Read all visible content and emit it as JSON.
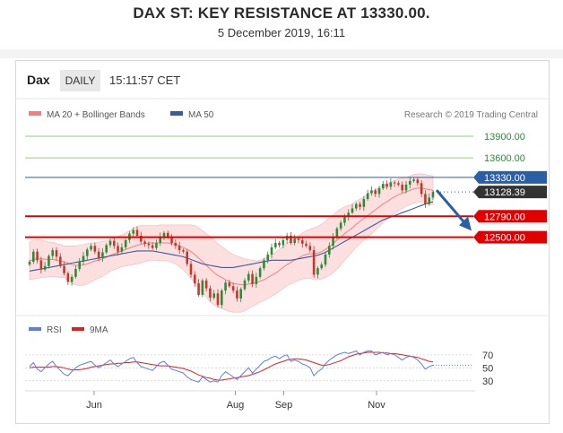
{
  "header": {
    "title": "DAX ST: KEY RESISTANCE AT 13330.00.",
    "subtitle": "5 December 2019, 16:11"
  },
  "toolbar": {
    "symbol": "Dax",
    "timeframe": "DAILY",
    "time": "15:11:57 CET"
  },
  "legend": {
    "ma20": "MA 20 + Bollinger Bands",
    "ma50": "MA 50",
    "credit": "Research © 2019 Trading Central"
  },
  "rsi_legend": {
    "rsi": "RSI",
    "ma9": "9MA"
  },
  "colors": {
    "resistance": "#2a5fa8",
    "support": "#e00000",
    "target_green": "#8fd07a",
    "candle_up": "#2e8b3a",
    "candle_down": "#c0392b",
    "bollinger_fill": "#fbd3d3",
    "ma20": "#f08080",
    "ma50": "#3a5ba0",
    "rsi_line": "#5b7fe0",
    "rsi_ma": "#e02020",
    "arrow": "#2a5fa8",
    "current_price_tag": "#333333"
  },
  "chart_data": {
    "type": "candlestick",
    "x_labels": [
      "Jun",
      "Aug",
      "Sep",
      "Nov"
    ],
    "y_range": [
      11500,
      14050
    ],
    "levels": [
      {
        "label": "13900.00",
        "value": 13900,
        "kind": "target"
      },
      {
        "label": "13600.00",
        "value": 13600,
        "kind": "target"
      },
      {
        "label": "13330.00",
        "value": 13330,
        "kind": "resistance"
      },
      {
        "label": "13128.39",
        "value": 13128.39,
        "kind": "current"
      },
      {
        "label": "12790.00",
        "value": 12790,
        "kind": "support"
      },
      {
        "label": "12500.00",
        "value": 12500,
        "kind": "support"
      }
    ],
    "close": [
      12160,
      12300,
      12180,
      12050,
      12100,
      12240,
      12320,
      12230,
      12100,
      12000,
      11880,
      11950,
      12060,
      12160,
      12240,
      12330,
      12380,
      12300,
      12210,
      12290,
      12390,
      12450,
      12380,
      12300,
      12360,
      12460,
      12550,
      12600,
      12520,
      12440,
      12410,
      12390,
      12350,
      12420,
      12510,
      12560,
      12500,
      12420,
      12380,
      12320,
      12300,
      12130,
      11980,
      11860,
      11700,
      11900,
      11790,
      11660,
      11720,
      11560,
      11760,
      11870,
      11820,
      11760,
      11650,
      11780,
      11900,
      11990,
      11850,
      11950,
      12070,
      12180,
      12260,
      12360,
      12420,
      12390,
      12460,
      12520,
      12420,
      12480,
      12460,
      12410,
      12380,
      12320,
      11980,
      12070,
      12120,
      12260,
      12380,
      12500,
      12620,
      12700,
      12780,
      12840,
      12900,
      12960,
      12920,
      13030,
      13110,
      13150,
      13100,
      13180,
      13240,
      13200,
      13260,
      13250,
      13230,
      13150,
      13230,
      13280,
      13300,
      13250,
      13100,
      12960,
      13050,
      13128
    ],
    "ma20_values": [
      12170,
      12190,
      12200,
      12200,
      12195,
      12190,
      12190,
      12180,
      12170,
      12160,
      12140,
      12120,
      12110,
      12110,
      12115,
      12130,
      12150,
      12170,
      12180,
      12200,
      12220,
      12250,
      12270,
      12290,
      12310,
      12330,
      12350,
      12370,
      12390,
      12400,
      12410,
      12420,
      12420,
      12420,
      12420,
      12420,
      12420,
      12410,
      12400,
      12380,
      12360,
      12330,
      12300,
      12260,
      12210,
      12160,
      12110,
      12060,
      12010,
      11970,
      11940,
      11910,
      11880,
      11860,
      11850,
      11840,
      11840,
      11850,
      11860,
      11870,
      11890,
      11910,
      11940,
      11970,
      12000,
      12040,
      12080,
      12120,
      12150,
      12180,
      12210,
      12240,
      12260,
      12270,
      12270,
      12280,
      12300,
      12330,
      12370,
      12410,
      12460,
      12500,
      12550,
      12590,
      12630,
      12680,
      12720,
      12760,
      12800,
      12840,
      12880,
      12920,
      12960,
      12990,
      13030,
      13060,
      13090,
      13110,
      13130,
      13150,
      13170,
      13180,
      13180,
      13170,
      13160,
      13150
    ],
    "bb_width": [
      260,
      270,
      270,
      260,
      250,
      240,
      240,
      230,
      230,
      220,
      240,
      260,
      270,
      280,
      280,
      280,
      270,
      260,
      250,
      240,
      230,
      220,
      220,
      220,
      220,
      230,
      240,
      250,
      260,
      260,
      250,
      240,
      240,
      240,
      250,
      250,
      250,
      260,
      270,
      290,
      310,
      340,
      370,
      400,
      420,
      430,
      440,
      450,
      450,
      440,
      430,
      420,
      410,
      400,
      390,
      380,
      360,
      340,
      320,
      300,
      290,
      290,
      290,
      290,
      290,
      290,
      290,
      290,
      300,
      300,
      310,
      320,
      330,
      340,
      360,
      370,
      380,
      390,
      400,
      400,
      400,
      390,
      370,
      350,
      330,
      320,
      310,
      300,
      300,
      290,
      280,
      270,
      260,
      250,
      240,
      230,
      220,
      210,
      200,
      200,
      200,
      200,
      200,
      200,
      200,
      200
    ],
    "ma50_values": [
      12030,
      12040,
      12050,
      12060,
      12070,
      12080,
      12090,
      12100,
      12110,
      12120,
      12130,
      12140,
      12150,
      12160,
      12170,
      12180,
      12190,
      12200,
      12210,
      12220,
      12230,
      12240,
      12250,
      12260,
      12270,
      12280,
      12290,
      12300,
      12310,
      12310,
      12310,
      12310,
      12310,
      12300,
      12290,
      12280,
      12270,
      12260,
      12250,
      12240,
      12230,
      12210,
      12190,
      12170,
      12150,
      12130,
      12120,
      12110,
      12100,
      12090,
      12080,
      12080,
      12080,
      12080,
      12090,
      12100,
      12110,
      12120,
      12130,
      12140,
      12150,
      12160,
      12170,
      12180,
      12180,
      12180,
      12180,
      12180,
      12180,
      12190,
      12200,
      12210,
      12220,
      12230,
      12240,
      12250,
      12270,
      12290,
      12320,
      12350,
      12380,
      12410,
      12440,
      12470,
      12500,
      12530,
      12560,
      12590,
      12620,
      12650,
      12680,
      12710,
      12740,
      12760,
      12780,
      12800,
      12820,
      12840,
      12860,
      12880,
      12900,
      12920,
      12940,
      12960,
      12980,
      12990
    ],
    "rsi": {
      "y_ticks": [
        70,
        50,
        30
      ],
      "rsi_values": [
        52,
        58,
        48,
        44,
        50,
        56,
        60,
        52,
        46,
        40,
        38,
        44,
        50,
        54,
        56,
        58,
        60,
        54,
        50,
        54,
        58,
        62,
        56,
        52,
        56,
        60,
        64,
        66,
        58,
        52,
        50,
        48,
        46,
        52,
        58,
        60,
        54,
        48,
        46,
        44,
        42,
        36,
        32,
        30,
        28,
        36,
        32,
        28,
        30,
        28,
        38,
        44,
        40,
        36,
        32,
        38,
        44,
        50,
        42,
        48,
        54,
        60,
        62,
        66,
        68,
        64,
        68,
        70,
        60,
        62,
        60,
        56,
        54,
        50,
        38,
        44,
        48,
        56,
        62,
        66,
        70,
        72,
        74,
        72,
        74,
        76,
        70,
        74,
        76,
        76,
        70,
        72,
        74,
        70,
        72,
        70,
        66,
        62,
        66,
        68,
        66,
        62,
        56,
        48,
        52,
        54
      ],
      "ma9_values": [
        50,
        51,
        51,
        51,
        51,
        51,
        52,
        52,
        51,
        50,
        48,
        47,
        47,
        47,
        48,
        49,
        51,
        52,
        53,
        54,
        55,
        56,
        56,
        57,
        57,
        58,
        58,
        59,
        59,
        58,
        57,
        56,
        55,
        54,
        53,
        53,
        53,
        52,
        51,
        50,
        49,
        47,
        45,
        42,
        39,
        37,
        35,
        34,
        32,
        31,
        31,
        32,
        33,
        34,
        35,
        36,
        37,
        38,
        40,
        42,
        44,
        47,
        50,
        53,
        56,
        58,
        60,
        62,
        63,
        64,
        64,
        63,
        62,
        60,
        58,
        56,
        54,
        54,
        55,
        57,
        59,
        61,
        64,
        67,
        69,
        71,
        72,
        73,
        74,
        74,
        74,
        74,
        73,
        73,
        72,
        72,
        71,
        70,
        69,
        68,
        67,
        66,
        64,
        62,
        60,
        59
      ]
    }
  }
}
